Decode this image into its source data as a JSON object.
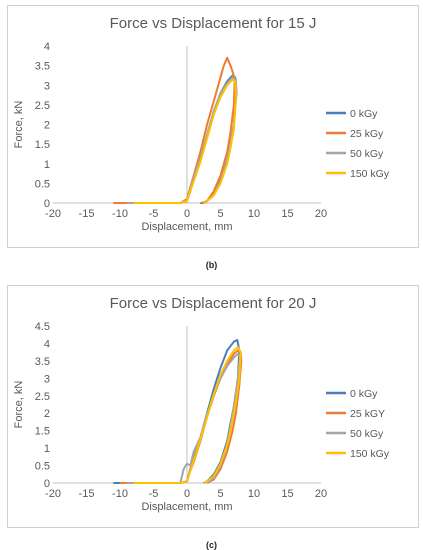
{
  "chart_data": [
    {
      "type": "line",
      "title": "Force vs Displacement for 15 J",
      "xlabel": "Displacement, mm",
      "ylabel": "Force, kN",
      "xlim": [
        -20,
        20
      ],
      "ylim": [
        0,
        4
      ],
      "xticks": [
        "-20",
        "-15",
        "-10",
        "-5",
        "0",
        "5",
        "10",
        "15",
        "20"
      ],
      "yticks": [
        "0",
        "0.5",
        "1",
        "1.5",
        "2",
        "2.5",
        "3",
        "3.5",
        "4"
      ],
      "legend_position": "right",
      "series": [
        {
          "name": "0 kGy",
          "color": "#4a7ebb",
          "x": [
            -10,
            -5,
            -1,
            0,
            0.5,
            1,
            2,
            3,
            4,
            5,
            6,
            6.8,
            7.2,
            7.3,
            7.0,
            6.5,
            6.0,
            5.0,
            4.0,
            3.0,
            2.5,
            2.0
          ],
          "y": [
            0,
            0,
            0,
            0.05,
            0.3,
            0.6,
            1.1,
            1.7,
            2.3,
            2.8,
            3.1,
            3.25,
            3.2,
            2.8,
            2.0,
            1.5,
            1.1,
            0.6,
            0.25,
            0.05,
            0,
            0
          ]
        },
        {
          "name": "25 kGy",
          "color": "#ed7d31",
          "x": [
            -11,
            -5,
            -1,
            0,
            0.5,
            1,
            2,
            3,
            4,
            5,
            5.5,
            6,
            6.5,
            6.9,
            7.1,
            7.0,
            6.5,
            6.0,
            5.0,
            4.0,
            3.0,
            2.2
          ],
          "y": [
            0,
            0,
            0,
            0.1,
            0.4,
            0.7,
            1.3,
            2.0,
            2.6,
            3.2,
            3.5,
            3.7,
            3.5,
            3.3,
            3.1,
            2.5,
            1.8,
            1.3,
            0.7,
            0.3,
            0.05,
            0
          ]
        },
        {
          "name": "50 kGy",
          "color": "#a5a5a5",
          "x": [
            -9,
            -5,
            -1,
            0,
            0.5,
            1,
            2,
            3,
            4,
            5,
            6,
            6.8,
            7.3,
            7.4,
            7.0,
            6.5,
            6.0,
            5.0,
            4.0,
            3.0,
            2.5
          ],
          "y": [
            0,
            0,
            0,
            0.05,
            0.35,
            0.65,
            1.15,
            1.75,
            2.35,
            2.8,
            3.05,
            3.2,
            3.15,
            2.8,
            2.0,
            1.5,
            1.1,
            0.55,
            0.2,
            0.05,
            0
          ]
        },
        {
          "name": "150 kGy",
          "color": "#ffc000",
          "x": [
            -8,
            -5,
            -1,
            0,
            0.5,
            1,
            2,
            3,
            4,
            5,
            6,
            6.8,
            7.2,
            7.3,
            7.0,
            6.5,
            6.0,
            5.0,
            4.0,
            3.0,
            2.4
          ],
          "y": [
            0,
            0,
            0,
            0.05,
            0.3,
            0.55,
            1.05,
            1.65,
            2.25,
            2.7,
            3.0,
            3.15,
            3.1,
            2.7,
            1.9,
            1.4,
            1.0,
            0.5,
            0.2,
            0.05,
            0
          ]
        }
      ]
    },
    {
      "type": "line",
      "title": "Force vs Displacement for 20 J",
      "xlabel": "Displacement, mm",
      "ylabel": "Force, kN",
      "xlim": [
        -20,
        20
      ],
      "ylim": [
        0,
        4.5
      ],
      "xticks": [
        "-20",
        "-15",
        "-10",
        "-5",
        "0",
        "5",
        "10",
        "15",
        "20"
      ],
      "yticks": [
        "0",
        "0.5",
        "1",
        "1.5",
        "2",
        "2.5",
        "3",
        "3.5",
        "4",
        "4.5"
      ],
      "legend_position": "right",
      "series": [
        {
          "name": "0 kGy",
          "color": "#4a7ebb",
          "x": [
            -11,
            -5,
            -1,
            0,
            0.5,
            1,
            2,
            3,
            4,
            5,
            6,
            7,
            7.5,
            7.8,
            7.6,
            7.0,
            6.5,
            6.0,
            5.0,
            4.0,
            3.0,
            2.5
          ],
          "y": [
            0,
            0,
            0,
            0.05,
            0.4,
            0.7,
            1.3,
            2.0,
            2.7,
            3.3,
            3.8,
            4.05,
            4.1,
            3.8,
            3.0,
            2.2,
            1.7,
            1.2,
            0.6,
            0.25,
            0.05,
            0
          ]
        },
        {
          "name": "25 kGY",
          "color": "#ed7d31",
          "x": [
            -10,
            -5,
            -1,
            0,
            0.5,
            1,
            2,
            3,
            4,
            5,
            6,
            7,
            7.6,
            8.0,
            8.1,
            7.8,
            7.3,
            6.8,
            6.0,
            5.0,
            4.0,
            3.0
          ],
          "y": [
            0,
            0,
            0,
            0.05,
            0.35,
            0.6,
            1.2,
            1.9,
            2.5,
            3.0,
            3.4,
            3.7,
            3.8,
            3.75,
            3.5,
            2.8,
            2.0,
            1.5,
            0.9,
            0.4,
            0.1,
            0
          ]
        },
        {
          "name": "50 kGy",
          "color": "#a5a5a5",
          "x": [
            -9,
            -5,
            -1,
            -0.5,
            0,
            0.5,
            1,
            2,
            3,
            4,
            5,
            6,
            7,
            7.6,
            7.9,
            7.6,
            7.0,
            6.5,
            6.0,
            5.0,
            4.0,
            3.0
          ],
          "y": [
            0,
            0,
            0,
            0.4,
            0.55,
            0.5,
            0.9,
            1.3,
            1.95,
            2.55,
            3.0,
            3.35,
            3.6,
            3.7,
            3.6,
            3.0,
            2.2,
            1.6,
            1.1,
            0.5,
            0.15,
            0
          ]
        },
        {
          "name": "150 kGy",
          "color": "#ffc000",
          "x": [
            -8,
            -5,
            -1,
            0,
            0.5,
            1,
            2,
            3,
            4,
            5,
            6,
            7,
            7.6,
            8.0,
            7.8,
            7.2,
            6.6,
            6.0,
            5.0,
            4.0,
            3.0,
            2.6
          ],
          "y": [
            0,
            0,
            0,
            0.05,
            0.35,
            0.65,
            1.25,
            1.9,
            2.55,
            3.1,
            3.5,
            3.8,
            3.9,
            3.75,
            3.0,
            2.2,
            1.6,
            1.1,
            0.55,
            0.2,
            0.05,
            0
          ]
        }
      ]
    }
  ],
  "captions": [
    "(b)",
    "(c)"
  ]
}
